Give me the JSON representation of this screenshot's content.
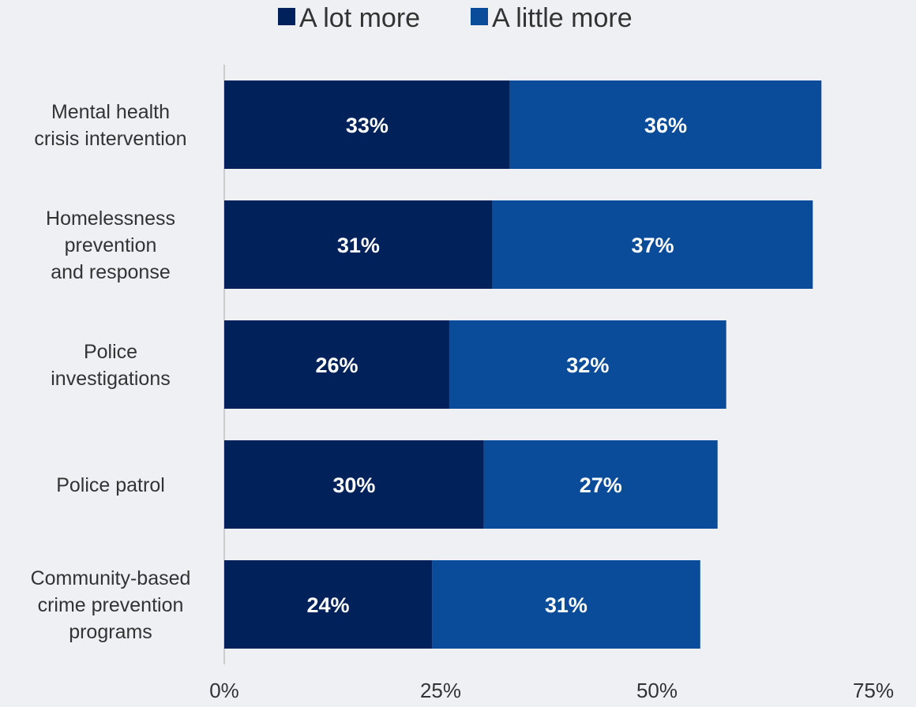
{
  "chart_data": {
    "type": "bar",
    "orientation": "horizontal",
    "stacked": true,
    "categories": [
      [
        "Mental health",
        "crisis intervention"
      ],
      [
        "Homelessness",
        "prevention",
        "and response"
      ],
      [
        "Police",
        "investigations"
      ],
      [
        "Police patrol"
      ],
      [
        "Community-based",
        "crime prevention",
        "programs"
      ]
    ],
    "series": [
      {
        "name": "A lot more",
        "color": "#002159",
        "values": [
          33,
          31,
          26,
          30,
          24
        ],
        "labels": [
          "33%",
          "31%",
          "26%",
          "30%",
          "24%"
        ]
      },
      {
        "name": "A little more",
        "color": "#0a4c9a",
        "values": [
          36,
          37,
          32,
          27,
          31
        ],
        "labels": [
          "36%",
          "37%",
          "32%",
          "27%",
          "31%"
        ]
      }
    ],
    "xlim": [
      0,
      75
    ],
    "xticks": [
      0,
      25,
      50,
      75
    ],
    "xtick_labels": [
      "0%",
      "25%",
      "50%",
      "75%"
    ],
    "legend_position": "top-center",
    "grid": false
  }
}
